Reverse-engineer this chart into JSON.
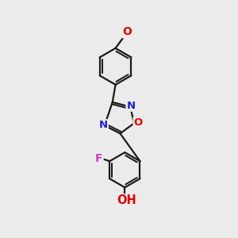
{
  "bg_color": "#ebebeb",
  "bond_color": "#1a1a1a",
  "bond_width": 1.6,
  "atom_colors": {
    "O_methoxy": "#dd0000",
    "O_ring": "#dd0000",
    "O_hydroxy": "#dd0000",
    "N": "#2222cc",
    "F": "#cc44bb"
  },
  "font_size": 9.5,
  "figsize": [
    3.0,
    3.0
  ],
  "dpi": 100,
  "xlim": [
    0,
    10
  ],
  "ylim": [
    0,
    10
  ]
}
